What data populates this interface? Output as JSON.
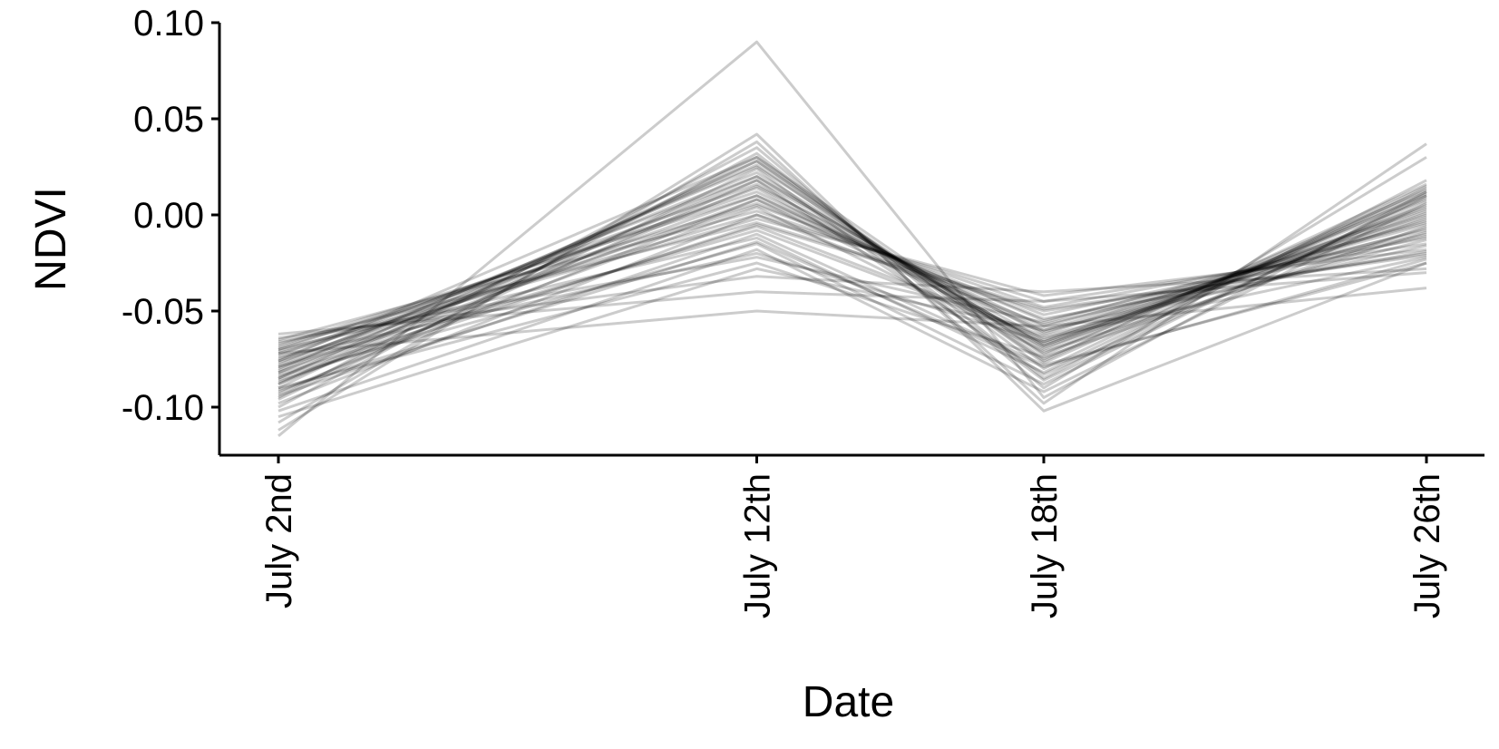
{
  "chart_data": {
    "type": "line",
    "xlabel": "Date",
    "ylabel": "NDVI",
    "categories": [
      "July 2nd",
      "July 12th",
      "July 18th",
      "July 26th"
    ],
    "x": [
      2,
      12,
      18,
      26
    ],
    "ylim": [
      -0.125,
      0.1
    ],
    "yticks": [
      "0.10",
      "0.05",
      "0.00",
      "-0.05",
      "-0.10"
    ],
    "ytick_values": [
      0.1,
      0.05,
      0.0,
      -0.05,
      -0.1
    ],
    "grid": false,
    "legend": "none",
    "line_color": "#000000",
    "series": [
      {
        "values": [
          -0.115,
          0.09,
          -0.095,
          0.012
        ]
      },
      {
        "values": [
          -0.072,
          -0.05,
          -0.058,
          -0.038
        ]
      },
      {
        "values": [
          -0.062,
          -0.04,
          -0.045,
          -0.03
        ]
      },
      {
        "values": [
          -0.112,
          0.042,
          -0.102,
          -0.025
        ]
      },
      {
        "values": [
          -0.108,
          0.038,
          -0.098,
          0.037
        ]
      },
      {
        "values": [
          -0.095,
          0.035,
          -0.09,
          0.03
        ]
      },
      {
        "values": [
          -0.1,
          0.032,
          -0.085,
          0.018
        ]
      },
      {
        "values": [
          -0.09,
          0.03,
          -0.08,
          0.015
        ]
      },
      {
        "values": [
          -0.085,
          0.028,
          -0.075,
          0.012
        ]
      },
      {
        "values": [
          -0.08,
          0.025,
          -0.072,
          0.01
        ]
      },
      {
        "values": [
          -0.078,
          0.022,
          -0.07,
          0.008
        ]
      },
      {
        "values": [
          -0.075,
          0.02,
          -0.068,
          0.005
        ]
      },
      {
        "values": [
          -0.082,
          0.018,
          -0.065,
          0.003
        ]
      },
      {
        "values": [
          -0.088,
          0.015,
          -0.062,
          0.0
        ]
      },
      {
        "values": [
          -0.07,
          0.012,
          -0.06,
          -0.003
        ]
      },
      {
        "values": [
          -0.068,
          0.01,
          -0.058,
          -0.005
        ]
      },
      {
        "values": [
          -0.092,
          0.008,
          -0.055,
          -0.008
        ]
      },
      {
        "values": [
          -0.076,
          0.005,
          -0.052,
          -0.01
        ]
      },
      {
        "values": [
          -0.065,
          0.002,
          -0.048,
          -0.012
        ]
      },
      {
        "values": [
          -0.098,
          0.0,
          -0.045,
          -0.015
        ]
      },
      {
        "values": [
          -0.072,
          -0.002,
          -0.042,
          -0.018
        ]
      },
      {
        "values": [
          -0.086,
          -0.005,
          -0.05,
          -0.02
        ]
      },
      {
        "values": [
          -0.079,
          -0.008,
          -0.064,
          -0.022
        ]
      },
      {
        "values": [
          -0.094,
          -0.01,
          -0.078,
          -0.025
        ]
      },
      {
        "values": [
          -0.07,
          -0.012,
          -0.082,
          0.014
        ]
      },
      {
        "values": [
          -0.084,
          -0.015,
          -0.088,
          0.01
        ]
      },
      {
        "values": [
          -0.102,
          -0.018,
          -0.092,
          0.006
        ]
      },
      {
        "values": [
          -0.074,
          -0.02,
          -0.066,
          0.002
        ]
      },
      {
        "values": [
          -0.066,
          -0.022,
          -0.056,
          -0.004
        ]
      },
      {
        "values": [
          -0.09,
          -0.025,
          -0.074,
          -0.006
        ]
      },
      {
        "values": [
          -0.105,
          -0.028,
          -0.06,
          -0.016
        ]
      },
      {
        "values": [
          -0.064,
          -0.032,
          -0.04,
          -0.028
        ]
      },
      {
        "values": [
          -0.081,
          0.026,
          -0.076,
          0.016
        ]
      },
      {
        "values": [
          -0.077,
          0.014,
          -0.069,
          0.001
        ]
      },
      {
        "values": [
          -0.087,
          0.004,
          -0.071,
          -0.009
        ]
      },
      {
        "values": [
          -0.083,
          -0.006,
          -0.063,
          -0.013
        ]
      },
      {
        "values": [
          -0.073,
          0.016,
          -0.067,
          -0.002
        ]
      },
      {
        "values": [
          -0.096,
          0.024,
          -0.086,
          0.009
        ]
      },
      {
        "values": [
          -0.069,
          0.006,
          -0.054,
          -0.019
        ]
      },
      {
        "values": [
          -0.091,
          -0.014,
          -0.079,
          -0.023
        ]
      },
      {
        "values": [
          -0.076,
          0.03,
          -0.073,
          0.013
        ]
      },
      {
        "values": [
          -0.085,
          0.02,
          -0.068,
          0.004
        ]
      },
      {
        "values": [
          -0.079,
          0.01,
          -0.061,
          -0.007
        ]
      },
      {
        "values": [
          -0.071,
          0.0,
          -0.057,
          -0.011
        ]
      },
      {
        "values": [
          -0.093,
          0.018,
          -0.083,
          0.007
        ]
      },
      {
        "values": [
          -0.067,
          -0.004,
          -0.049,
          -0.021
        ]
      },
      {
        "values": [
          -0.082,
          0.008,
          -0.066,
          -0.001
        ]
      },
      {
        "values": [
          -0.088,
          0.028,
          -0.077,
          0.011
        ]
      }
    ]
  }
}
